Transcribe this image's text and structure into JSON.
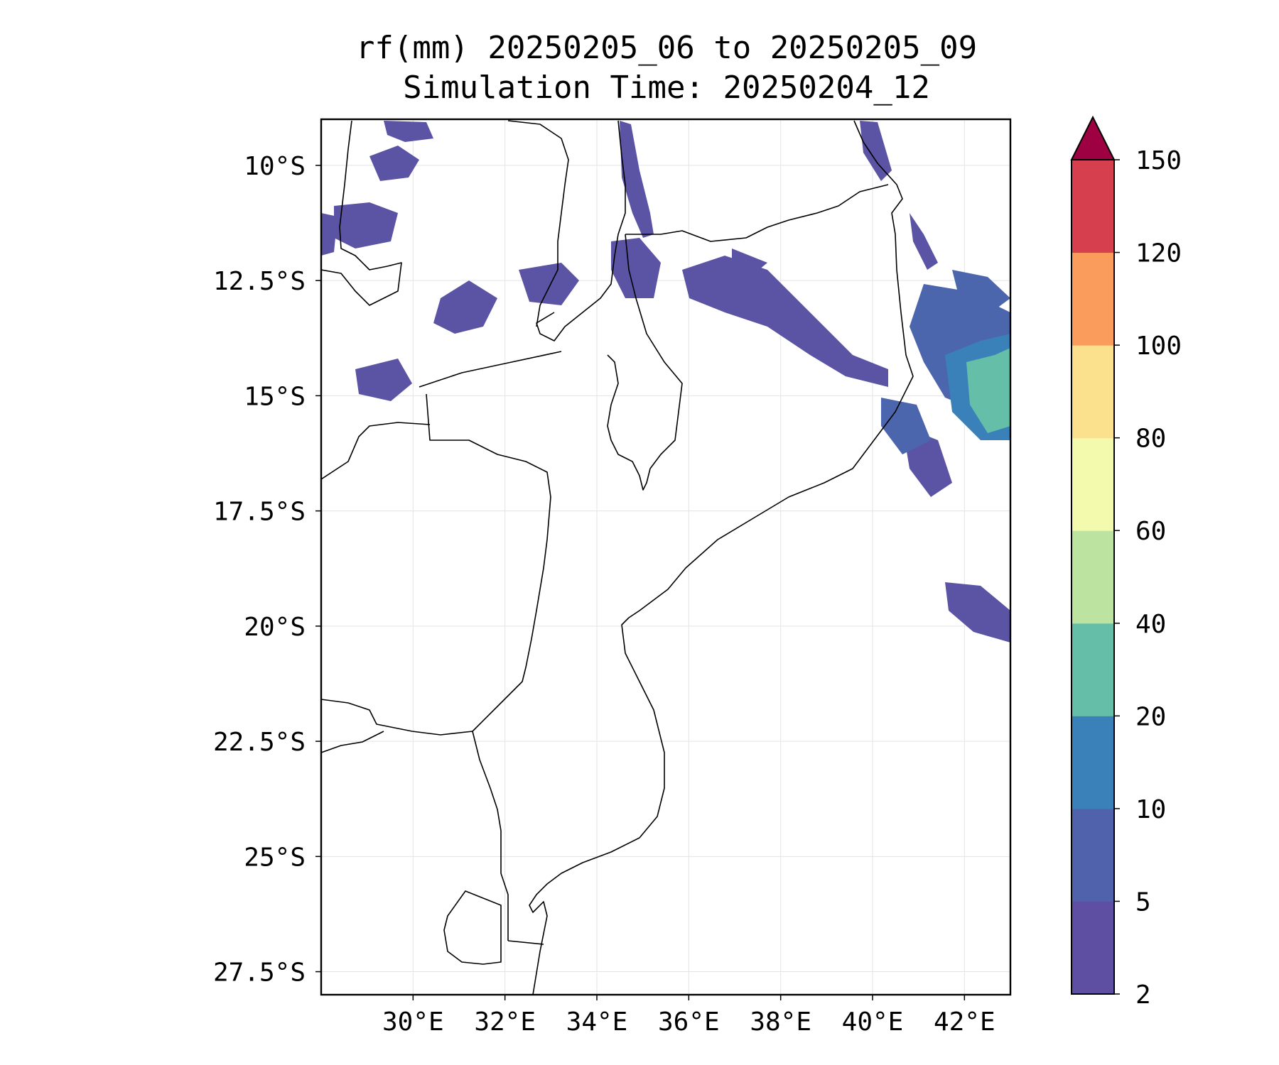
{
  "title": {
    "line1": "rf(mm) 20250205_06 to 20250205_09",
    "line2": "Simulation Time: 20250204_12"
  },
  "map": {
    "lon_range": [
      28.0,
      43.0
    ],
    "lat_range": [
      -28.0,
      -9.0
    ],
    "lon_ticks": [
      {
        "value": 30,
        "label": "30°E"
      },
      {
        "value": 32,
        "label": "32°E"
      },
      {
        "value": 34,
        "label": "34°E"
      },
      {
        "value": 36,
        "label": "36°E"
      },
      {
        "value": 38,
        "label": "38°E"
      },
      {
        "value": 40,
        "label": "40°E"
      },
      {
        "value": 42,
        "label": "42°E"
      }
    ],
    "lat_ticks": [
      {
        "value": -10,
        "label": "10°S"
      },
      {
        "value": -12.5,
        "label": "12.5°S"
      },
      {
        "value": -15,
        "label": "15°S"
      },
      {
        "value": -17.5,
        "label": "17.5°S"
      },
      {
        "value": -20,
        "label": "20°S"
      },
      {
        "value": -22.5,
        "label": "22.5°S"
      },
      {
        "value": -25,
        "label": "25°S"
      },
      {
        "value": -27.5,
        "label": "27.5°S"
      }
    ],
    "gridlines": true
  },
  "colorbar": {
    "extend": "max",
    "extend_color": "#9e0142",
    "levels": [
      {
        "label": "2"
      },
      {
        "label": "5"
      },
      {
        "label": "10"
      },
      {
        "label": "20"
      },
      {
        "label": "40"
      },
      {
        "label": "60"
      },
      {
        "label": "80"
      },
      {
        "label": "100"
      },
      {
        "label": "120"
      },
      {
        "label": "150"
      }
    ],
    "colors": [
      "#5e4fa2",
      "#4f62ab",
      "#3a80b9",
      "#65bfa8",
      "#bde3a0",
      "#f3f9ad",
      "#fbe08e",
      "#fa9c5b",
      "#d6404e"
    ]
  }
}
